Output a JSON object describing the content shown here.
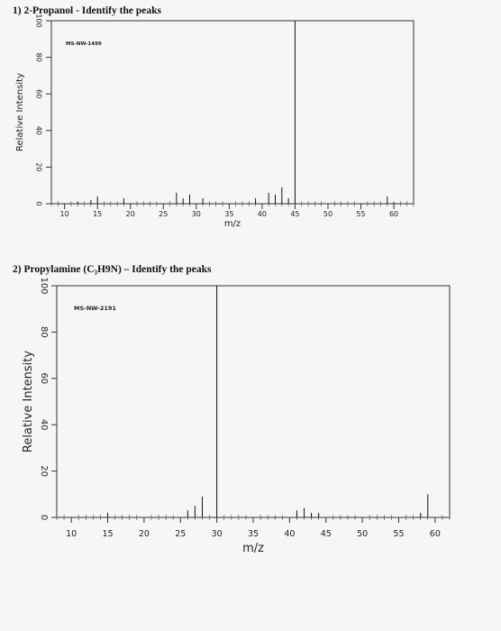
{
  "problems": [
    {
      "heading": "1) 2-Propanol  -  Identify the peaks"
    },
    {
      "heading": "2) Propylamine (C₃H9N) – Identify the peaks"
    }
  ],
  "chart_data": [
    {
      "type": "bar",
      "spectrum_id": "MS-NW-1499",
      "xlabel": "m/z",
      "ylabel": "Relative Intensity",
      "xlim": [
        8,
        63
      ],
      "ylim": [
        0,
        100
      ],
      "x_ticks": [
        10,
        15,
        20,
        25,
        30,
        35,
        40,
        45,
        50,
        55,
        60
      ],
      "y_ticks": [
        0,
        20,
        40,
        60,
        80,
        100
      ],
      "grid": false,
      "peaks": [
        {
          "x": 12,
          "y": 1
        },
        {
          "x": 14,
          "y": 2
        },
        {
          "x": 15,
          "y": 4
        },
        {
          "x": 19,
          "y": 3
        },
        {
          "x": 27,
          "y": 6
        },
        {
          "x": 28,
          "y": 3
        },
        {
          "x": 29,
          "y": 5
        },
        {
          "x": 31,
          "y": 3
        },
        {
          "x": 39,
          "y": 3
        },
        {
          "x": 41,
          "y": 6
        },
        {
          "x": 42,
          "y": 5
        },
        {
          "x": 43,
          "y": 9
        },
        {
          "x": 44,
          "y": 3
        },
        {
          "x": 45,
          "y": 100
        },
        {
          "x": 59,
          "y": 4
        },
        {
          "x": 60,
          "y": 1
        }
      ]
    },
    {
      "type": "bar",
      "spectrum_id": "MS-NW-2191",
      "xlabel": "m/z",
      "ylabel": "Relative Intensity",
      "xlim": [
        8,
        62
      ],
      "ylim": [
        0,
        100
      ],
      "x_ticks": [
        10,
        15,
        20,
        25,
        30,
        35,
        40,
        45,
        50,
        55,
        60
      ],
      "y_ticks": [
        0,
        20,
        40,
        60,
        80,
        100
      ],
      "grid": false,
      "peaks": [
        {
          "x": 15,
          "y": 2
        },
        {
          "x": 26,
          "y": 3
        },
        {
          "x": 27,
          "y": 5
        },
        {
          "x": 28,
          "y": 9
        },
        {
          "x": 30,
          "y": 100
        },
        {
          "x": 41,
          "y": 3
        },
        {
          "x": 42,
          "y": 4
        },
        {
          "x": 43,
          "y": 2
        },
        {
          "x": 44,
          "y": 2
        },
        {
          "x": 58,
          "y": 2
        },
        {
          "x": 59,
          "y": 10
        }
      ]
    }
  ]
}
